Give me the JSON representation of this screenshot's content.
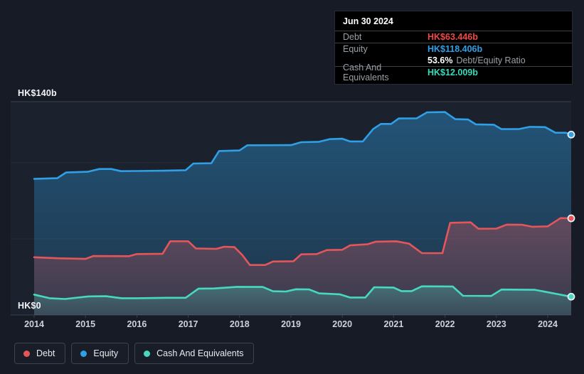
{
  "tooltip": {
    "date": "Jun 30 2024",
    "rows": [
      {
        "label": "Debt",
        "value": "HK$63.446b"
      },
      {
        "label": "Equity",
        "value": "HK$118.406b"
      },
      {
        "label": "Cash And Equivalents",
        "value": "HK$12.009b"
      }
    ],
    "ratio_value": "53.6%",
    "ratio_label": "Debt/Equity Ratio"
  },
  "axis": {
    "y_top_label": "HK$140b",
    "y_bottom_label": "HK$0",
    "x_ticks": [
      "2014",
      "2015",
      "2016",
      "2017",
      "2018",
      "2019",
      "2020",
      "2021",
      "2022",
      "2023",
      "2024"
    ]
  },
  "legend": [
    {
      "label": "Debt",
      "color": "#e4565a"
    },
    {
      "label": "Equity",
      "color": "#2f9fe6"
    },
    {
      "label": "Cash And Equivalents",
      "color": "#47d8c0"
    }
  ],
  "colors": {
    "debt": "#ef4a45",
    "equity": "#2f9fe6",
    "cash": "#35dcbd",
    "page_bg": "#161b25",
    "plot_bg": "#1b222e",
    "grid_strong": "#39424e",
    "grid_faint": "#242d39",
    "tooltip_bg": "#000000"
  },
  "chart_data": {
    "type": "area",
    "unit": "HK$ billions",
    "x_range": [
      2014,
      2024.5
    ],
    "ylim": [
      0,
      140
    ],
    "gridline_values": [
      0,
      50,
      100,
      140
    ],
    "labeled_gridlines": [
      0,
      140
    ],
    "legend_position": "bottom-left",
    "series": [
      {
        "name": "Equity",
        "color": "#2f9fe6",
        "final_label": "HK$118.406b",
        "points": [
          [
            2014.0,
            89.3
          ],
          [
            2014.45,
            89.8
          ],
          [
            2014.62,
            93.5
          ],
          [
            2015.04,
            94.0
          ],
          [
            2015.27,
            95.8
          ],
          [
            2015.5,
            95.8
          ],
          [
            2015.69,
            94.4
          ],
          [
            2016.0,
            94.5
          ],
          [
            2016.5,
            94.7
          ],
          [
            2016.95,
            95.0
          ],
          [
            2017.1,
            99.4
          ],
          [
            2017.45,
            99.6
          ],
          [
            2017.6,
            107.6
          ],
          [
            2018.0,
            108.0
          ],
          [
            2018.15,
            111.4
          ],
          [
            2019.0,
            111.5
          ],
          [
            2019.2,
            113.4
          ],
          [
            2019.55,
            113.7
          ],
          [
            2019.75,
            115.4
          ],
          [
            2020.0,
            115.7
          ],
          [
            2020.15,
            113.9
          ],
          [
            2020.4,
            113.9
          ],
          [
            2020.6,
            122.0
          ],
          [
            2020.75,
            125.4
          ],
          [
            2020.95,
            125.4
          ],
          [
            2021.1,
            129.0
          ],
          [
            2021.45,
            129.1
          ],
          [
            2021.65,
            133.0
          ],
          [
            2022.0,
            133.2
          ],
          [
            2022.2,
            128.5
          ],
          [
            2022.45,
            128.3
          ],
          [
            2022.6,
            125.1
          ],
          [
            2022.95,
            124.9
          ],
          [
            2023.1,
            122.0
          ],
          [
            2023.45,
            122.1
          ],
          [
            2023.65,
            123.5
          ],
          [
            2023.95,
            123.3
          ],
          [
            2024.15,
            119.6
          ],
          [
            2024.35,
            119.6
          ],
          [
            2024.5,
            118.406
          ]
        ]
      },
      {
        "name": "Debt",
        "color": "#e4565a",
        "final_label": "HK$63.446b",
        "points": [
          [
            2014.0,
            37.9
          ],
          [
            2014.5,
            37.2
          ],
          [
            2015.0,
            36.8
          ],
          [
            2015.15,
            38.7
          ],
          [
            2015.85,
            38.6
          ],
          [
            2016.0,
            40.0
          ],
          [
            2016.5,
            40.2
          ],
          [
            2016.65,
            48.4
          ],
          [
            2017.0,
            48.4
          ],
          [
            2017.15,
            43.7
          ],
          [
            2017.55,
            43.4
          ],
          [
            2017.7,
            44.8
          ],
          [
            2017.9,
            44.5
          ],
          [
            2018.05,
            39.5
          ],
          [
            2018.2,
            32.8
          ],
          [
            2018.5,
            32.8
          ],
          [
            2018.65,
            35.1
          ],
          [
            2019.05,
            35.3
          ],
          [
            2019.2,
            39.8
          ],
          [
            2019.5,
            40.0
          ],
          [
            2019.7,
            42.6
          ],
          [
            2020.0,
            42.8
          ],
          [
            2020.15,
            45.7
          ],
          [
            2020.5,
            46.5
          ],
          [
            2020.65,
            48.1
          ],
          [
            2021.05,
            48.4
          ],
          [
            2021.3,
            46.8
          ],
          [
            2021.55,
            40.6
          ],
          [
            2021.95,
            40.6
          ],
          [
            2022.1,
            60.5
          ],
          [
            2022.5,
            60.8
          ],
          [
            2022.65,
            56.6
          ],
          [
            2023.0,
            56.7
          ],
          [
            2023.2,
            59.3
          ],
          [
            2023.5,
            59.2
          ],
          [
            2023.7,
            57.9
          ],
          [
            2024.0,
            58.2
          ],
          [
            2024.25,
            63.6
          ],
          [
            2024.5,
            63.446
          ]
        ]
      },
      {
        "name": "Cash And Equivalents",
        "color": "#47d8c0",
        "final_label": "HK$12.009b",
        "points": [
          [
            2014.0,
            13.4
          ],
          [
            2014.3,
            11.0
          ],
          [
            2014.6,
            10.5
          ],
          [
            2015.05,
            12.2
          ],
          [
            2015.4,
            12.3
          ],
          [
            2015.7,
            11.0
          ],
          [
            2016.0,
            11.0
          ],
          [
            2016.6,
            11.3
          ],
          [
            2016.95,
            11.3
          ],
          [
            2017.2,
            17.3
          ],
          [
            2017.5,
            17.4
          ],
          [
            2017.95,
            18.5
          ],
          [
            2018.45,
            18.4
          ],
          [
            2018.65,
            15.6
          ],
          [
            2018.9,
            15.4
          ],
          [
            2019.1,
            16.9
          ],
          [
            2019.35,
            16.8
          ],
          [
            2019.55,
            14.2
          ],
          [
            2019.95,
            13.6
          ],
          [
            2020.15,
            11.5
          ],
          [
            2020.45,
            11.5
          ],
          [
            2020.62,
            18.2
          ],
          [
            2021.0,
            18.0
          ],
          [
            2021.15,
            15.7
          ],
          [
            2021.35,
            15.7
          ],
          [
            2021.55,
            18.8
          ],
          [
            2022.15,
            18.7
          ],
          [
            2022.35,
            12.6
          ],
          [
            2022.9,
            12.5
          ],
          [
            2023.1,
            16.7
          ],
          [
            2023.75,
            16.5
          ],
          [
            2024.05,
            14.6
          ],
          [
            2024.3,
            13.0
          ],
          [
            2024.5,
            12.009
          ]
        ]
      }
    ]
  }
}
